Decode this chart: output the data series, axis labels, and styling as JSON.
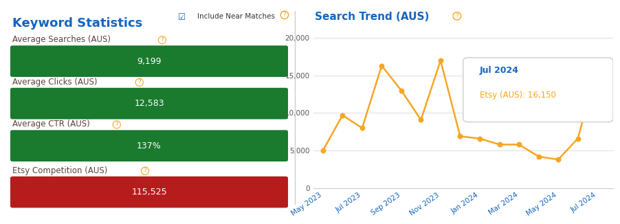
{
  "left_title": "Keyword Statistics",
  "right_title": "Search Trend (AUS)",
  "checkbox_label": "Include Near Matches",
  "bars": [
    {
      "label": "Average Searches (AUS)",
      "value": "9,199",
      "color": "#1a7a2e"
    },
    {
      "label": "Average Clicks (AUS)",
      "value": "12,583",
      "color": "#1a7a2e"
    },
    {
      "label": "Average CTR (AUS)",
      "value": "137%",
      "color": "#1a7a2e"
    },
    {
      "label": "Etsy Competition (AUS)",
      "value": "115,525",
      "color": "#b71c1c"
    }
  ],
  "line_x_labels": [
    "May 2023",
    "Jul 2023",
    "Sep 2023",
    "Nov 2023",
    "Jan 2024",
    "Mar 2024",
    "May 2024",
    "Jul 2024"
  ],
  "line_y": [
    5000,
    9700,
    8000,
    16300,
    13000,
    9100,
    17000,
    6900,
    6600,
    5800,
    5800,
    4200,
    3800,
    6600,
    16150
  ],
  "yticks": [
    0,
    5000,
    10000,
    15000,
    20000
  ],
  "ylim": [
    0,
    22000
  ],
  "tooltip_label": "Jul 2024",
  "tooltip_value": "Etsy (AUS): 16,150",
  "line_color": "#f5a623",
  "title_color": "#1565c0",
  "label_color": "#5d4037",
  "bar_text_color": "#ffffff",
  "question_mark_color": "#f5a623",
  "bg_color": "#ffffff"
}
